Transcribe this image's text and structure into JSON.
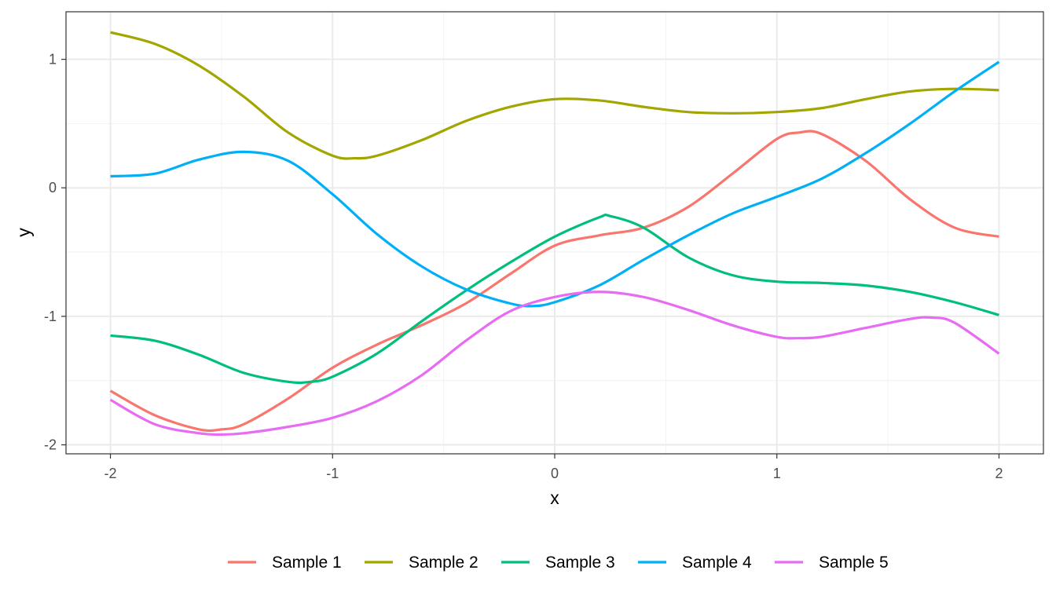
{
  "chart_data": {
    "type": "line",
    "title": "",
    "xlabel": "x",
    "ylabel": "y",
    "xlim": [
      -2.2,
      2.2
    ],
    "ylim": [
      -2.07,
      1.37
    ],
    "x_ticks": [
      -2,
      -1,
      0,
      1,
      2
    ],
    "x_tick_labels": [
      "-2",
      "-1",
      "0",
      "1",
      "2"
    ],
    "y_ticks": [
      -2,
      -1,
      0,
      1
    ],
    "y_tick_labels": [
      "-2",
      "-1",
      "0",
      "1"
    ],
    "grid": true,
    "legend_position": "bottom",
    "series": [
      {
        "name": "Sample 1",
        "color": "#F8766D",
        "x": [
          -2,
          -1.8,
          -1.6,
          -1.5,
          -1.4,
          -1.2,
          -1,
          -0.8,
          -0.6,
          -0.4,
          -0.2,
          0,
          0.2,
          0.4,
          0.6,
          0.8,
          1,
          1.1,
          1.2,
          1.4,
          1.6,
          1.8,
          2
        ],
        "y": [
          -1.58,
          -1.77,
          -1.88,
          -1.88,
          -1.84,
          -1.64,
          -1.4,
          -1.22,
          -1.07,
          -0.9,
          -0.67,
          -0.45,
          -0.37,
          -0.31,
          -0.15,
          0.11,
          0.38,
          0.43,
          0.42,
          0.21,
          -0.09,
          -0.31,
          -0.38
        ]
      },
      {
        "name": "Sample 2",
        "color": "#A3A500",
        "x": [
          -2,
          -1.8,
          -1.6,
          -1.4,
          -1.2,
          -1,
          -0.9,
          -0.8,
          -0.6,
          -0.4,
          -0.2,
          0,
          0.2,
          0.4,
          0.6,
          0.8,
          1,
          1.2,
          1.4,
          1.6,
          1.8,
          2
        ],
        "y": [
          1.21,
          1.12,
          0.95,
          0.71,
          0.43,
          0.25,
          0.23,
          0.25,
          0.37,
          0.52,
          0.63,
          0.69,
          0.68,
          0.63,
          0.59,
          0.58,
          0.59,
          0.62,
          0.69,
          0.75,
          0.77,
          0.76
        ]
      },
      {
        "name": "Sample 3",
        "color": "#00BF7D",
        "x": [
          -2,
          -1.8,
          -1.6,
          -1.4,
          -1.2,
          -1.1,
          -1,
          -0.8,
          -0.6,
          -0.4,
          -0.2,
          0,
          0.2,
          0.25,
          0.4,
          0.6,
          0.8,
          1,
          1.2,
          1.4,
          1.6,
          1.8,
          2
        ],
        "y": [
          -1.15,
          -1.19,
          -1.3,
          -1.44,
          -1.51,
          -1.51,
          -1.47,
          -1.29,
          -1.04,
          -0.8,
          -0.58,
          -0.38,
          -0.23,
          -0.22,
          -0.31,
          -0.54,
          -0.68,
          -0.73,
          -0.74,
          -0.76,
          -0.81,
          -0.89,
          -0.99
        ]
      },
      {
        "name": "Sample 4",
        "color": "#00B0F6",
        "x": [
          -2,
          -1.8,
          -1.6,
          -1.4,
          -1.2,
          -1,
          -0.8,
          -0.6,
          -0.4,
          -0.2,
          -0.1,
          0,
          0.2,
          0.4,
          0.6,
          0.8,
          1,
          1.2,
          1.4,
          1.6,
          1.8,
          2
        ],
        "y": [
          0.09,
          0.11,
          0.22,
          0.28,
          0.21,
          -0.05,
          -0.36,
          -0.61,
          -0.79,
          -0.9,
          -0.92,
          -0.89,
          -0.76,
          -0.56,
          -0.37,
          -0.2,
          -0.07,
          0.07,
          0.27,
          0.5,
          0.75,
          0.98
        ]
      },
      {
        "name": "Sample 5",
        "color": "#E76BF3",
        "x": [
          -2,
          -1.8,
          -1.6,
          -1.5,
          -1.4,
          -1.2,
          -1,
          -0.8,
          -0.6,
          -0.4,
          -0.2,
          0,
          0.2,
          0.4,
          0.6,
          0.8,
          1,
          1.1,
          1.2,
          1.4,
          1.6,
          1.7,
          1.8,
          2
        ],
        "y": [
          -1.65,
          -1.84,
          -1.91,
          -1.92,
          -1.91,
          -1.86,
          -1.79,
          -1.66,
          -1.46,
          -1.19,
          -0.96,
          -0.85,
          -0.81,
          -0.85,
          -0.95,
          -1.07,
          -1.16,
          -1.17,
          -1.16,
          -1.09,
          -1.02,
          -1.01,
          -1.05,
          -1.29
        ]
      }
    ]
  }
}
